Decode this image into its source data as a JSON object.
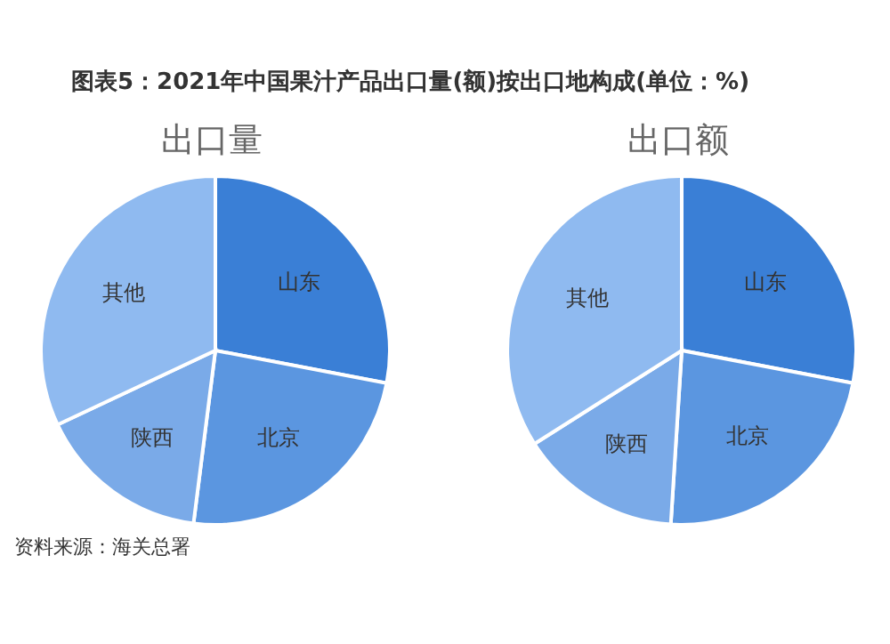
{
  "chart_data": [
    {
      "type": "pie",
      "title": "图表5：2021年中国果汁产品出口量(额)按出口地构成(单位：%)",
      "subtitle": "出口量",
      "categories": [
        "山东",
        "北京",
        "陕西",
        "其他"
      ],
      "values": [
        28,
        24,
        16,
        32
      ],
      "colors": [
        "#3a7fd6",
        "#5b96e0",
        "#7aaae8",
        "#8fbaf0"
      ],
      "annotations": [
        "资料来源：海关总署"
      ]
    },
    {
      "type": "pie",
      "subtitle": "出口额",
      "categories": [
        "山东",
        "北京",
        "陕西",
        "其他"
      ],
      "values": [
        28,
        23,
        15,
        34
      ],
      "colors": [
        "#3a7fd6",
        "#5b96e0",
        "#7aaae8",
        "#8fbaf0"
      ]
    }
  ]
}
